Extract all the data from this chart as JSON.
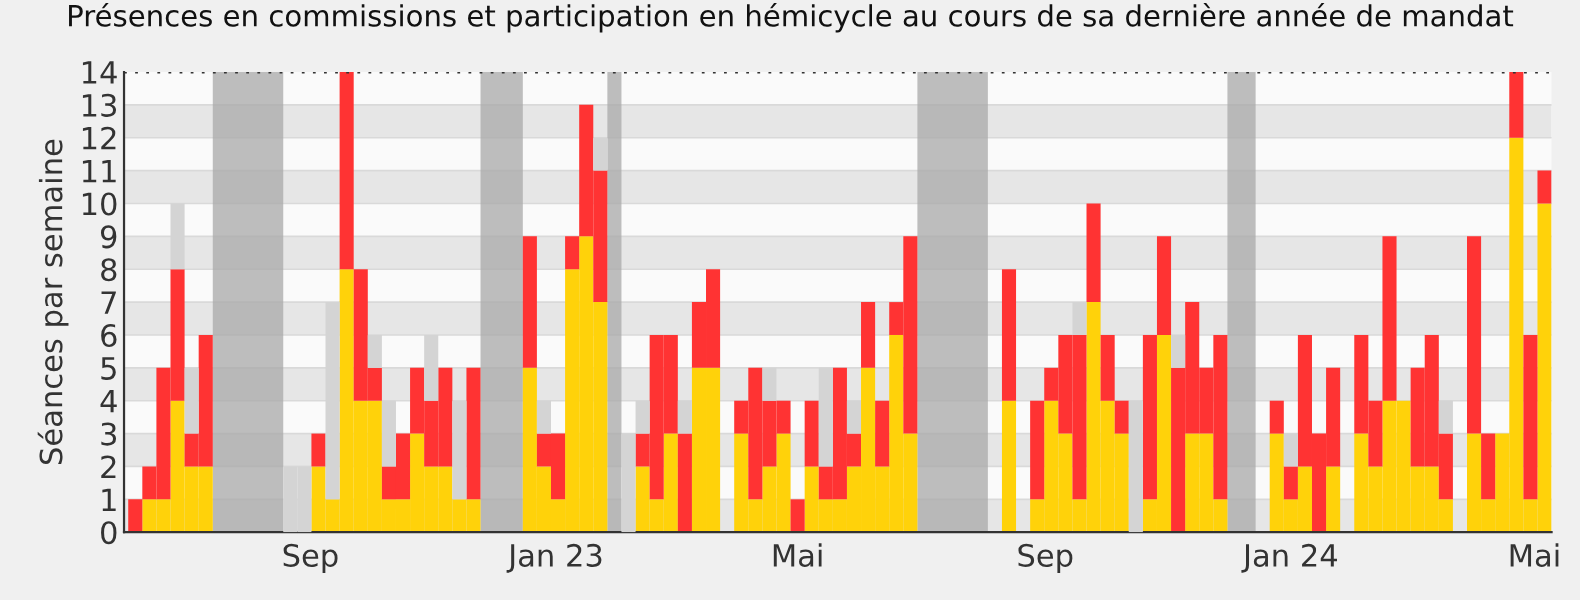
{
  "chart_data": {
    "type": "bar",
    "title": "Présences en commissions et participation en hémicycle au cours de sa dernière année de mandat",
    "ylabel": "Séances par semaine",
    "x": [
      "2022-06-06",
      "2022-06-13",
      "2022-06-20",
      "2022-06-27",
      "2022-07-04",
      "2022-07-11",
      "2022-07-18",
      "2022-07-25",
      "2022-08-01",
      "2022-08-08",
      "2022-08-15",
      "2022-08-22",
      "2022-08-29",
      "2022-09-05",
      "2022-09-12",
      "2022-09-19",
      "2022-09-26",
      "2022-10-03",
      "2022-10-10",
      "2022-10-17",
      "2022-10-24",
      "2022-10-31",
      "2022-11-07",
      "2022-11-14",
      "2022-11-21",
      "2022-11-28",
      "2022-12-05",
      "2022-12-12",
      "2022-12-19",
      "2022-12-26",
      "2023-01-02",
      "2023-01-09",
      "2023-01-16",
      "2023-01-23",
      "2023-01-30",
      "2023-02-06",
      "2023-02-13",
      "2023-02-20",
      "2023-02-27",
      "2023-03-06",
      "2023-03-13",
      "2023-03-20",
      "2023-03-27",
      "2023-04-03",
      "2023-04-10",
      "2023-04-17",
      "2023-04-24",
      "2023-05-01",
      "2023-05-08",
      "2023-05-15",
      "2023-05-22",
      "2023-05-29",
      "2023-06-05",
      "2023-06-12",
      "2023-06-19",
      "2023-06-26",
      "2023-07-03",
      "2023-07-10",
      "2023-07-17",
      "2023-07-24",
      "2023-07-31",
      "2023-08-07",
      "2023-08-14",
      "2023-08-21",
      "2023-08-28",
      "2023-09-04",
      "2023-09-11",
      "2023-09-18",
      "2023-09-25",
      "2023-10-02",
      "2023-10-09",
      "2023-10-16",
      "2023-10-23",
      "2023-10-30",
      "2023-11-06",
      "2023-11-13",
      "2023-11-20",
      "2023-11-27",
      "2023-12-04",
      "2023-12-11",
      "2023-12-18",
      "2023-12-25",
      "2024-01-01",
      "2024-01-08",
      "2024-01-15",
      "2024-01-22",
      "2024-01-29",
      "2024-02-05",
      "2024-02-12",
      "2024-02-19",
      "2024-02-26",
      "2024-03-04",
      "2024-03-11",
      "2024-03-18",
      "2024-03-25",
      "2024-04-01",
      "2024-04-08",
      "2024-04-15",
      "2024-04-22",
      "2024-04-29",
      "2024-05-06"
    ],
    "stacked": true,
    "series": [
      {
        "color": "#ffd20a",
        "values": [
          0,
          1,
          1,
          4,
          2,
          2,
          0,
          0,
          0,
          0,
          0,
          0,
          0,
          2,
          1,
          8,
          4,
          4,
          1,
          1,
          3,
          2,
          2,
          1,
          1,
          0,
          0,
          0,
          5,
          2,
          1,
          8,
          9,
          7,
          0,
          0,
          2,
          1,
          3,
          0,
          5,
          5,
          0,
          3,
          1,
          2,
          3,
          0,
          2,
          1,
          1,
          2,
          5,
          2,
          6,
          3,
          0,
          0,
          0,
          0,
          0,
          0,
          4,
          0,
          1,
          4,
          3,
          1,
          7,
          4,
          3,
          0,
          1,
          6,
          0,
          3,
          3,
          1,
          0,
          0,
          0,
          3,
          1,
          2,
          0,
          2,
          0,
          3,
          2,
          4,
          4,
          2,
          2,
          1,
          0,
          3,
          1,
          3,
          12,
          1,
          10
        ]
      },
      {
        "color": "#ff3333",
        "values": [
          1,
          1,
          4,
          4,
          1,
          4,
          0,
          0,
          0,
          0,
          0,
          0,
          0,
          1,
          0,
          6,
          4,
          1,
          1,
          2,
          2,
          2,
          3,
          0,
          4,
          0,
          0,
          0,
          4,
          1,
          2,
          1,
          4,
          4,
          0,
          0,
          1,
          5,
          3,
          3,
          2,
          3,
          0,
          1,
          4,
          2,
          1,
          1,
          2,
          1,
          4,
          1,
          2,
          2,
          1,
          6,
          0,
          0,
          0,
          0,
          0,
          0,
          4,
          0,
          3,
          1,
          3,
          5,
          3,
          2,
          1,
          0,
          5,
          3,
          5,
          4,
          2,
          5,
          0,
          0,
          0,
          1,
          1,
          4,
          3,
          3,
          0,
          3,
          2,
          5,
          0,
          3,
          4,
          2,
          0,
          6,
          2,
          0,
          2,
          5,
          1
        ]
      },
      {
        "color": "#d4d4d4",
        "values": [
          0,
          0,
          0,
          2,
          2,
          0,
          0,
          0,
          0,
          0,
          0,
          2,
          2,
          0,
          6,
          0,
          0,
          1,
          2,
          0,
          0,
          2,
          0,
          3,
          0,
          0,
          0,
          0,
          0,
          1,
          0,
          0,
          0,
          1,
          0,
          3,
          1,
          0,
          0,
          1,
          0,
          0,
          0,
          0,
          0,
          1,
          0,
          0,
          0,
          3,
          0,
          1,
          0,
          0,
          0,
          0,
          0,
          0,
          0,
          0,
          0,
          0,
          0,
          0,
          0,
          0,
          0,
          1,
          0,
          0,
          0,
          4,
          0,
          0,
          1,
          0,
          0,
          0,
          0,
          0,
          0,
          0,
          1,
          0,
          0,
          0,
          0,
          0,
          0,
          0,
          0,
          0,
          0,
          1,
          0,
          0,
          0,
          0,
          0,
          0,
          0
        ]
      }
    ],
    "bands": [
      {
        "axis": "x",
        "from": "2022-07-14T12:00",
        "to": "2022-08-18T12:00",
        "color": "#a8a8a8"
      },
      {
        "axis": "x",
        "from": "2022-11-24T12:00",
        "to": "2022-12-15T12:00",
        "color": "#a8a8a8"
      },
      {
        "axis": "x",
        "from": "2023-01-26T12:00",
        "to": "2023-02-02T12:00",
        "color": "#a8a8a8"
      },
      {
        "axis": "x",
        "from": "2023-06-29T12:00",
        "to": "2023-08-03T12:00",
        "color": "#a8a8a8"
      },
      {
        "axis": "x",
        "from": "2023-11-30T12:00",
        "to": "2023-12-14T12:00",
        "color": "#a8a8a8"
      }
    ],
    "xlim": [
      "2022-05-31T10:00",
      "2024-05-09T12:00"
    ],
    "xticks": [
      {
        "value": "2022-09-01",
        "label": "Sep"
      },
      {
        "value": "2023-01-01",
        "label": "Jan 23"
      },
      {
        "value": "2023-05-01",
        "label": "Mai"
      },
      {
        "value": "2023-09-01",
        "label": "Sep"
      },
      {
        "value": "2024-01-01",
        "label": "Jan 24"
      },
      {
        "value": "2024-05-01",
        "label": "Mai"
      }
    ],
    "ylim": [
      0,
      14
    ],
    "yticks": [
      0,
      1,
      2,
      3,
      4,
      5,
      6,
      7,
      8,
      9,
      10,
      11,
      12,
      13,
      14
    ],
    "grid": "y",
    "legend": false
  }
}
